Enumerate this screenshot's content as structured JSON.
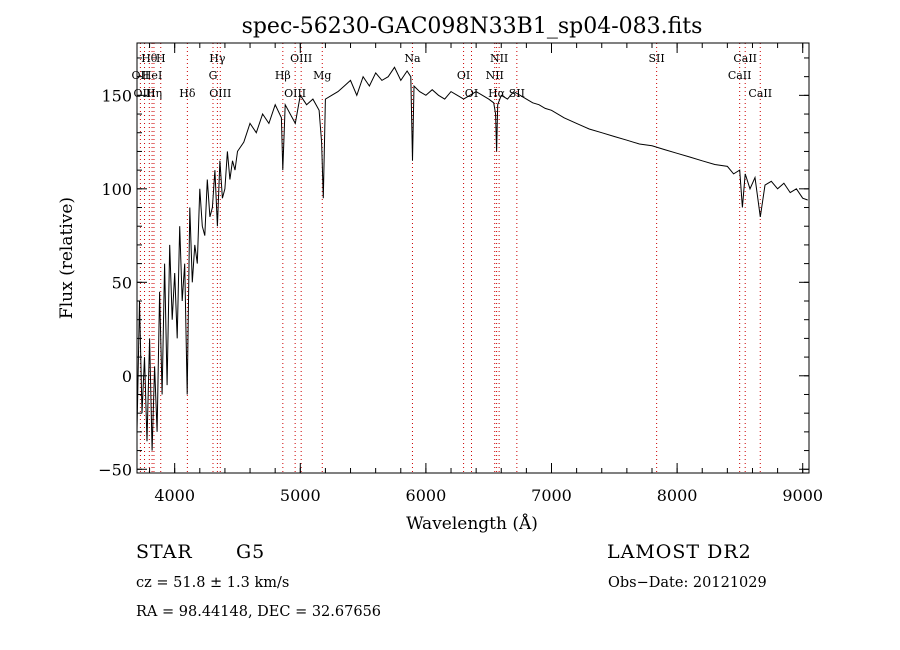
{
  "chart_data": {
    "type": "line",
    "title": "spec-56230-GAC098N33B1_sp04-083.fits",
    "xlabel": "Wavelength (Å)",
    "ylabel": "Flux (relative)",
    "xlim": [
      3700,
      9050
    ],
    "ylim": [
      -52,
      178
    ],
    "xticks": [
      4000,
      5000,
      6000,
      7000,
      8000,
      9000
    ],
    "xtick_labels": [
      "4000",
      "5000",
      "6000",
      "7000",
      "8000",
      "9000"
    ],
    "yticks": [
      -50,
      0,
      50,
      100,
      150
    ],
    "ytick_labels": [
      "−50",
      "0",
      "50",
      "100",
      "150"
    ],
    "grid": false,
    "series": [
      {
        "color": "#000000",
        "x": [
          3700,
          3720,
          3740,
          3760,
          3780,
          3800,
          3820,
          3840,
          3860,
          3880,
          3900,
          3920,
          3940,
          3960,
          3980,
          4000,
          4020,
          4040,
          4060,
          4080,
          4100,
          4120,
          4140,
          4160,
          4180,
          4200,
          4220,
          4240,
          4260,
          4280,
          4300,
          4320,
          4340,
          4360,
          4380,
          4400,
          4420,
          4440,
          4460,
          4480,
          4500,
          4550,
          4600,
          4650,
          4700,
          4750,
          4800,
          4850,
          4861,
          4880,
          4920,
          4960,
          5000,
          5050,
          5100,
          5150,
          5170,
          5183,
          5200,
          5250,
          5300,
          5350,
          5400,
          5450,
          5500,
          5550,
          5600,
          5650,
          5700,
          5750,
          5800,
          5850,
          5880,
          5893,
          5905,
          5950,
          6000,
          6050,
          6100,
          6150,
          6200,
          6250,
          6300,
          6350,
          6400,
          6450,
          6500,
          6540,
          6555,
          6563,
          6572,
          6600,
          6650,
          6700,
          6750,
          6800,
          6850,
          6900,
          6950,
          7000,
          7100,
          7200,
          7300,
          7400,
          7500,
          7600,
          7700,
          7800,
          7900,
          8000,
          8100,
          8200,
          8300,
          8400,
          8450,
          8498,
          8520,
          8542,
          8580,
          8620,
          8662,
          8700,
          8750,
          8800,
          8850,
          8900,
          8950,
          9000,
          9040
        ],
        "y": [
          -30,
          40,
          -20,
          10,
          -35,
          20,
          -40,
          5,
          -30,
          45,
          -10,
          60,
          -5,
          70,
          30,
          55,
          20,
          80,
          40,
          60,
          -10,
          90,
          50,
          70,
          60,
          100,
          80,
          75,
          105,
          85,
          90,
          110,
          80,
          115,
          95,
          100,
          120,
          105,
          115,
          110,
          120,
          125,
          135,
          130,
          140,
          135,
          145,
          138,
          110,
          145,
          140,
          135,
          150,
          145,
          148,
          142,
          125,
          95,
          148,
          150,
          152,
          155,
          158,
          150,
          160,
          155,
          162,
          158,
          160,
          165,
          158,
          163,
          160,
          115,
          155,
          152,
          150,
          153,
          150,
          148,
          152,
          150,
          148,
          150,
          152,
          150,
          148,
          146,
          140,
          120,
          145,
          150,
          148,
          152,
          150,
          148,
          146,
          145,
          143,
          142,
          138,
          135,
          132,
          130,
          128,
          126,
          124,
          123,
          121,
          119,
          117,
          115,
          113,
          112,
          108,
          110,
          90,
          108,
          100,
          106,
          85,
          102,
          104,
          100,
          103,
          98,
          100,
          95,
          94
        ]
      }
    ],
    "line_markers": [
      {
        "label": "Hθ",
        "wavelength": 3798,
        "row": 0
      },
      {
        "label": "H",
        "wavelength": 3889,
        "row": 0
      },
      {
        "label": "OII",
        "wavelength": 3727,
        "row": 1
      },
      {
        "label": "HeI",
        "wavelength": 3820,
        "row": 1
      },
      {
        "label": "OIII",
        "wavelength": 3760,
        "row": 2
      },
      {
        "label": "Hη",
        "wavelength": 3835,
        "row": 2
      },
      {
        "label": "Hδ",
        "wavelength": 4101,
        "row": 2
      },
      {
        "label": "Hγ",
        "wavelength": 4340,
        "row": 0
      },
      {
        "label": "G",
        "wavelength": 4305,
        "row": 1
      },
      {
        "label": "OIII",
        "wavelength": 4363,
        "row": 2
      },
      {
        "label": "OIII",
        "wavelength": 5007,
        "row": 0
      },
      {
        "label": "Hβ",
        "wavelength": 4861,
        "row": 1
      },
      {
        "label": "Mg",
        "wavelength": 5175,
        "row": 1
      },
      {
        "label": "OIII",
        "wavelength": 4959,
        "row": 2
      },
      {
        "label": "Na",
        "wavelength": 5893,
        "row": 0
      },
      {
        "label": "NII",
        "wavelength": 6583,
        "row": 0
      },
      {
        "label": "OI",
        "wavelength": 6300,
        "row": 1
      },
      {
        "label": "NII",
        "wavelength": 6548,
        "row": 1
      },
      {
        "label": "OI",
        "wavelength": 6363,
        "row": 2
      },
      {
        "label": "Hα",
        "wavelength": 6563,
        "row": 2
      },
      {
        "label": "SII",
        "wavelength": 6724,
        "row": 2
      },
      {
        "label": "SII",
        "wavelength": 7837,
        "row": 0
      },
      {
        "label": "CaII",
        "wavelength": 8542,
        "row": 0
      },
      {
        "label": "CaII",
        "wavelength": 8498,
        "row": 1
      },
      {
        "label": "CaII",
        "wavelength": 8662,
        "row": 2
      }
    ],
    "marker_color": "#cc0000"
  },
  "info": {
    "object_class": "STAR",
    "subclass": "G5",
    "survey": "LAMOST DR2",
    "cz": "cz = 51.8 ± 1.3 km/s",
    "obs_date": "Obs−Date: 20121029",
    "coords": "RA =   98.44148, DEC =   32.67656"
  }
}
